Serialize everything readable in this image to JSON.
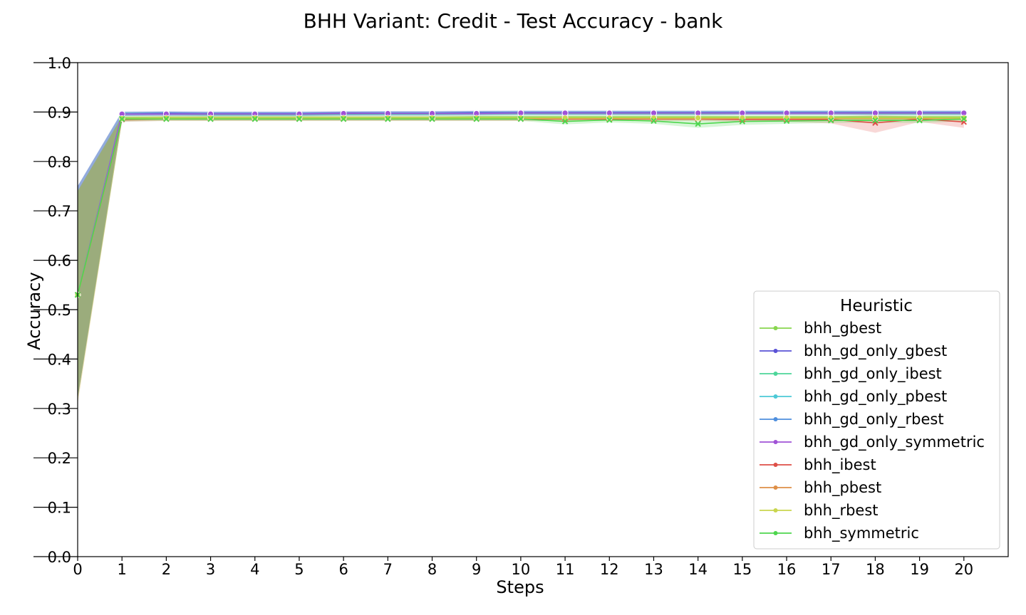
{
  "chart_data": {
    "type": "line",
    "title": "BHH Variant: Credit - Test Accuracy - bank",
    "xlabel": "Steps",
    "ylabel": "Accuracy",
    "xlim": [
      0,
      21
    ],
    "ylim": [
      0,
      1.0
    ],
    "x": [
      0,
      1,
      2,
      3,
      4,
      5,
      6,
      7,
      8,
      9,
      10,
      11,
      12,
      13,
      14,
      15,
      16,
      17,
      18,
      19,
      20
    ],
    "xticks": [
      "0",
      "1",
      "2",
      "3",
      "4",
      "5",
      "6",
      "7",
      "8",
      "9",
      "10",
      "11",
      "12",
      "13",
      "14",
      "15",
      "16",
      "17",
      "18",
      "19",
      "20"
    ],
    "yticks": [
      "0.0",
      "0.1",
      "0.2",
      "0.3",
      "0.4",
      "0.5",
      "0.6",
      "0.7",
      "0.8",
      "0.9",
      "1.0"
    ],
    "grid": false,
    "legend": {
      "title": "Heuristic",
      "position": "lower-right"
    },
    "series": [
      {
        "name": "bhh_gbest",
        "color": "#88d64e",
        "values": [
          0.53,
          0.888,
          0.889,
          0.889,
          0.889,
          0.889,
          0.889,
          0.889,
          0.889,
          0.89,
          0.89,
          0.89,
          0.89,
          0.89,
          0.89,
          0.89,
          0.89,
          0.89,
          0.89,
          0.89,
          0.89
        ],
        "lower": [
          0.32,
          0.882,
          0.885,
          0.885,
          0.885,
          0.885,
          0.885,
          0.885,
          0.885,
          0.886,
          0.886,
          0.886,
          0.886,
          0.886,
          0.886,
          0.886,
          0.886,
          0.886,
          0.886,
          0.886,
          0.886
        ],
        "upper": [
          0.74,
          0.893,
          0.893,
          0.893,
          0.893,
          0.893,
          0.893,
          0.893,
          0.893,
          0.894,
          0.894,
          0.894,
          0.894,
          0.894,
          0.894,
          0.894,
          0.894,
          0.894,
          0.894,
          0.894,
          0.894
        ]
      },
      {
        "name": "bhh_gd_only_gbest",
        "color": "#5a52d6",
        "values": [
          0.53,
          0.897,
          0.898,
          0.897,
          0.897,
          0.897,
          0.898,
          0.898,
          0.898,
          0.899,
          0.899,
          0.899,
          0.899,
          0.899,
          0.899,
          0.899,
          0.899,
          0.899,
          0.899,
          0.899,
          0.899
        ],
        "lower": [
          0.32,
          0.893,
          0.894,
          0.893,
          0.893,
          0.893,
          0.894,
          0.894,
          0.894,
          0.895,
          0.895,
          0.895,
          0.895,
          0.895,
          0.895,
          0.895,
          0.895,
          0.895,
          0.895,
          0.895,
          0.895
        ],
        "upper": [
          0.75,
          0.901,
          0.902,
          0.901,
          0.901,
          0.901,
          0.902,
          0.902,
          0.902,
          0.903,
          0.903,
          0.903,
          0.903,
          0.903,
          0.903,
          0.903,
          0.903,
          0.903,
          0.903,
          0.903,
          0.903
        ]
      },
      {
        "name": "bhh_gd_only_ibest",
        "color": "#4dd69a",
        "values": [
          0.53,
          0.896,
          0.896,
          0.895,
          0.895,
          0.895,
          0.896,
          0.896,
          0.896,
          0.897,
          0.897,
          0.897,
          0.897,
          0.897,
          0.897,
          0.898,
          0.898,
          0.898,
          0.897,
          0.897,
          0.897
        ],
        "lower": [
          0.32,
          0.892,
          0.892,
          0.891,
          0.891,
          0.891,
          0.892,
          0.892,
          0.892,
          0.893,
          0.893,
          0.893,
          0.893,
          0.893,
          0.893,
          0.894,
          0.894,
          0.894,
          0.893,
          0.893,
          0.893
        ],
        "upper": [
          0.75,
          0.9,
          0.9,
          0.899,
          0.899,
          0.899,
          0.9,
          0.9,
          0.9,
          0.901,
          0.901,
          0.901,
          0.901,
          0.901,
          0.901,
          0.902,
          0.902,
          0.902,
          0.901,
          0.901,
          0.901
        ]
      },
      {
        "name": "bhh_gd_only_pbest",
        "color": "#4dc9d6",
        "values": [
          0.53,
          0.897,
          0.897,
          0.896,
          0.896,
          0.896,
          0.897,
          0.897,
          0.897,
          0.898,
          0.898,
          0.898,
          0.898,
          0.898,
          0.898,
          0.899,
          0.899,
          0.899,
          0.898,
          0.898,
          0.898
        ],
        "lower": [
          0.32,
          0.893,
          0.893,
          0.892,
          0.892,
          0.892,
          0.893,
          0.893,
          0.893,
          0.894,
          0.894,
          0.894,
          0.894,
          0.894,
          0.894,
          0.895,
          0.895,
          0.895,
          0.894,
          0.894,
          0.894
        ],
        "upper": [
          0.75,
          0.901,
          0.901,
          0.9,
          0.9,
          0.9,
          0.901,
          0.901,
          0.901,
          0.902,
          0.902,
          0.902,
          0.902,
          0.902,
          0.902,
          0.903,
          0.903,
          0.903,
          0.902,
          0.902,
          0.902
        ]
      },
      {
        "name": "bhh_gd_only_rbest",
        "color": "#4f8fde",
        "values": [
          0.53,
          0.896,
          0.897,
          0.897,
          0.897,
          0.897,
          0.897,
          0.898,
          0.898,
          0.898,
          0.899,
          0.899,
          0.899,
          0.899,
          0.899,
          0.899,
          0.899,
          0.899,
          0.899,
          0.899,
          0.899
        ],
        "lower": [
          0.32,
          0.892,
          0.893,
          0.893,
          0.893,
          0.893,
          0.893,
          0.894,
          0.894,
          0.894,
          0.895,
          0.895,
          0.895,
          0.895,
          0.895,
          0.895,
          0.895,
          0.895,
          0.895,
          0.895,
          0.895
        ],
        "upper": [
          0.75,
          0.9,
          0.901,
          0.901,
          0.901,
          0.901,
          0.901,
          0.902,
          0.902,
          0.902,
          0.903,
          0.903,
          0.903,
          0.903,
          0.903,
          0.903,
          0.903,
          0.903,
          0.903,
          0.903,
          0.903
        ]
      },
      {
        "name": "bhh_gd_only_symmetric",
        "color": "#a052d6",
        "values": [
          0.53,
          0.896,
          0.896,
          0.896,
          0.896,
          0.896,
          0.897,
          0.897,
          0.897,
          0.897,
          0.898,
          0.898,
          0.898,
          0.898,
          0.898,
          0.898,
          0.898,
          0.898,
          0.898,
          0.898,
          0.898
        ],
        "lower": [
          0.32,
          0.892,
          0.892,
          0.892,
          0.892,
          0.892,
          0.893,
          0.893,
          0.893,
          0.893,
          0.894,
          0.894,
          0.894,
          0.894,
          0.894,
          0.894,
          0.894,
          0.894,
          0.894,
          0.894,
          0.894
        ],
        "upper": [
          0.75,
          0.9,
          0.9,
          0.9,
          0.9,
          0.9,
          0.901,
          0.901,
          0.901,
          0.901,
          0.902,
          0.902,
          0.902,
          0.902,
          0.902,
          0.902,
          0.902,
          0.902,
          0.902,
          0.902,
          0.902
        ]
      },
      {
        "name": "bhh_ibest",
        "color": "#de4f47",
        "values": [
          0.53,
          0.885,
          0.886,
          0.886,
          0.886,
          0.886,
          0.886,
          0.886,
          0.886,
          0.886,
          0.886,
          0.886,
          0.886,
          0.886,
          0.886,
          0.885,
          0.885,
          0.885,
          0.878,
          0.886,
          0.88
        ],
        "lower": [
          0.32,
          0.88,
          0.882,
          0.882,
          0.882,
          0.882,
          0.882,
          0.882,
          0.882,
          0.882,
          0.882,
          0.882,
          0.882,
          0.882,
          0.882,
          0.88,
          0.88,
          0.877,
          0.858,
          0.88,
          0.868
        ],
        "upper": [
          0.74,
          0.89,
          0.89,
          0.89,
          0.89,
          0.89,
          0.89,
          0.89,
          0.89,
          0.89,
          0.89,
          0.89,
          0.89,
          0.89,
          0.89,
          0.89,
          0.89,
          0.891,
          0.893,
          0.891,
          0.89
        ]
      },
      {
        "name": "bhh_pbest",
        "color": "#de8f47",
        "values": [
          0.53,
          0.886,
          0.887,
          0.887,
          0.887,
          0.887,
          0.887,
          0.887,
          0.887,
          0.887,
          0.887,
          0.887,
          0.887,
          0.887,
          0.887,
          0.887,
          0.887,
          0.887,
          0.887,
          0.887,
          0.887
        ],
        "lower": [
          0.31,
          0.882,
          0.883,
          0.883,
          0.883,
          0.883,
          0.883,
          0.883,
          0.883,
          0.883,
          0.883,
          0.883,
          0.883,
          0.883,
          0.883,
          0.883,
          0.883,
          0.883,
          0.883,
          0.883,
          0.883
        ],
        "upper": [
          0.74,
          0.89,
          0.891,
          0.891,
          0.891,
          0.891,
          0.891,
          0.891,
          0.891,
          0.891,
          0.891,
          0.891,
          0.891,
          0.891,
          0.891,
          0.891,
          0.891,
          0.891,
          0.891,
          0.891,
          0.891
        ]
      },
      {
        "name": "bhh_rbest",
        "color": "#c9d64e",
        "values": [
          0.53,
          0.887,
          0.888,
          0.888,
          0.888,
          0.888,
          0.888,
          0.888,
          0.888,
          0.888,
          0.888,
          0.888,
          0.888,
          0.888,
          0.888,
          0.888,
          0.888,
          0.888,
          0.888,
          0.888,
          0.888
        ],
        "lower": [
          0.31,
          0.883,
          0.884,
          0.884,
          0.884,
          0.884,
          0.884,
          0.884,
          0.884,
          0.884,
          0.884,
          0.884,
          0.884,
          0.884,
          0.884,
          0.884,
          0.884,
          0.884,
          0.884,
          0.884,
          0.884
        ],
        "upper": [
          0.74,
          0.891,
          0.892,
          0.892,
          0.892,
          0.892,
          0.892,
          0.892,
          0.892,
          0.892,
          0.892,
          0.892,
          0.892,
          0.892,
          0.892,
          0.892,
          0.892,
          0.892,
          0.892,
          0.892,
          0.892
        ]
      },
      {
        "name": "bhh_symmetric",
        "color": "#4ed64e",
        "values": [
          0.53,
          0.886,
          0.886,
          0.886,
          0.886,
          0.886,
          0.886,
          0.886,
          0.886,
          0.886,
          0.886,
          0.881,
          0.884,
          0.882,
          0.876,
          0.881,
          0.882,
          0.883,
          0.883,
          0.883,
          0.886
        ],
        "lower": [
          0.32,
          0.881,
          0.882,
          0.882,
          0.882,
          0.882,
          0.882,
          0.882,
          0.882,
          0.882,
          0.882,
          0.875,
          0.879,
          0.876,
          0.868,
          0.874,
          0.876,
          0.878,
          0.878,
          0.878,
          0.881
        ],
        "upper": [
          0.74,
          0.891,
          0.89,
          0.89,
          0.89,
          0.89,
          0.89,
          0.89,
          0.89,
          0.89,
          0.89,
          0.887,
          0.889,
          0.888,
          0.884,
          0.888,
          0.888,
          0.888,
          0.888,
          0.888,
          0.891
        ]
      }
    ]
  }
}
